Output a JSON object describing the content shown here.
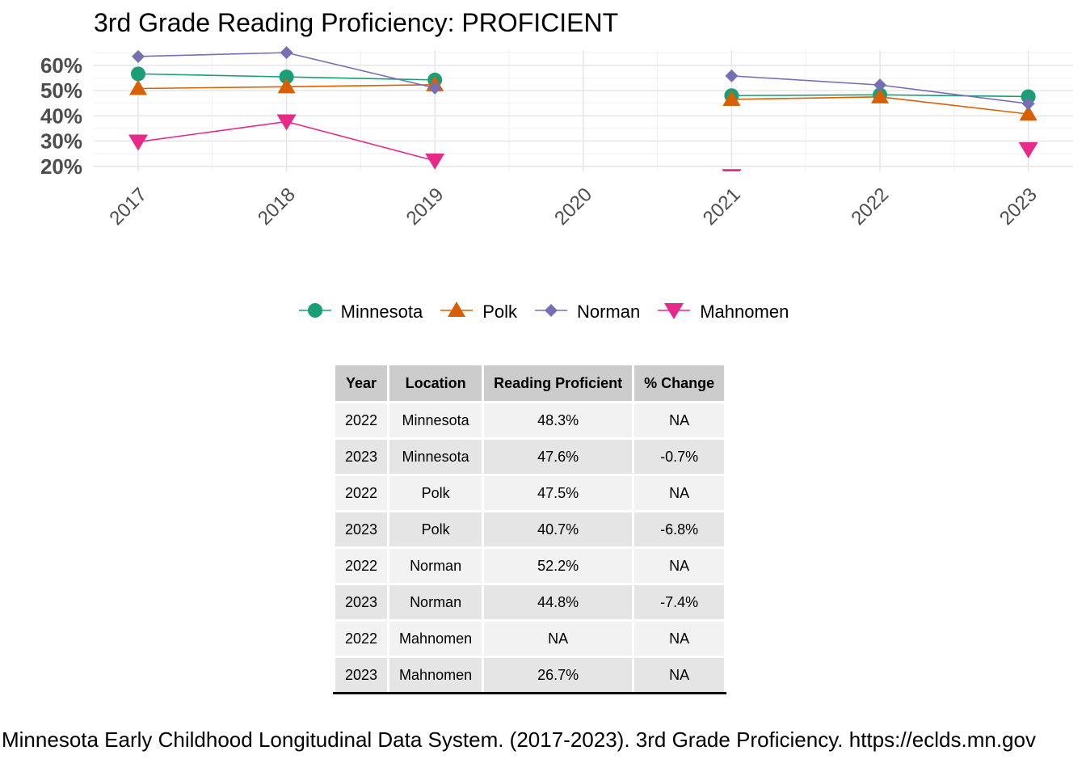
{
  "chart_data": {
    "type": "line",
    "title": "3rd Grade Reading Proficiency: PROFICIENT",
    "x": [
      "2017",
      "2018",
      "2019",
      "2020",
      "2021",
      "2022",
      "2023"
    ],
    "y_ticks": [
      "20%",
      "30%",
      "40%",
      "50%",
      "60%"
    ],
    "ylim": [
      18,
      66
    ],
    "grid": true,
    "legend_position": "bottom",
    "series": [
      {
        "name": "Minnesota",
        "color": "#1b9e77",
        "marker": "circle",
        "values": [
          56.6,
          55.4,
          54.2,
          null,
          48.0,
          48.3,
          47.6
        ]
      },
      {
        "name": "Polk",
        "color": "#d95f02",
        "marker": "triangle-up",
        "values": [
          50.8,
          51.5,
          52.3,
          null,
          46.5,
          47.5,
          40.7
        ]
      },
      {
        "name": "Norman",
        "color": "#7570b3",
        "marker": "diamond",
        "values": [
          63.5,
          65.0,
          51.0,
          null,
          55.8,
          52.2,
          44.8
        ]
      },
      {
        "name": "Mahnomen",
        "color": "#e7298a",
        "marker": "triangle-down",
        "values": [
          29.7,
          37.7,
          22.2,
          null,
          16.0,
          null,
          26.7
        ]
      }
    ]
  },
  "table": {
    "headers": [
      "Year",
      "Location",
      "Reading Proficient",
      "% Change"
    ],
    "rows": [
      [
        "2022",
        "Minnesota",
        "48.3%",
        "NA"
      ],
      [
        "2023",
        "Minnesota",
        "47.6%",
        "-0.7%"
      ],
      [
        "2022",
        "Polk",
        "47.5%",
        "NA"
      ],
      [
        "2023",
        "Polk",
        "40.7%",
        "-6.8%"
      ],
      [
        "2022",
        "Norman",
        "52.2%",
        "NA"
      ],
      [
        "2023",
        "Norman",
        "44.8%",
        "-7.4%"
      ],
      [
        "2022",
        "Mahnomen",
        "NA",
        "NA"
      ],
      [
        "2023",
        "Mahnomen",
        "26.7%",
        "NA"
      ]
    ]
  },
  "caption": "Minnesota Early Childhood Longitudinal Data System. (2017-2023). 3rd Grade Proficiency. https://eclds.mn.gov"
}
